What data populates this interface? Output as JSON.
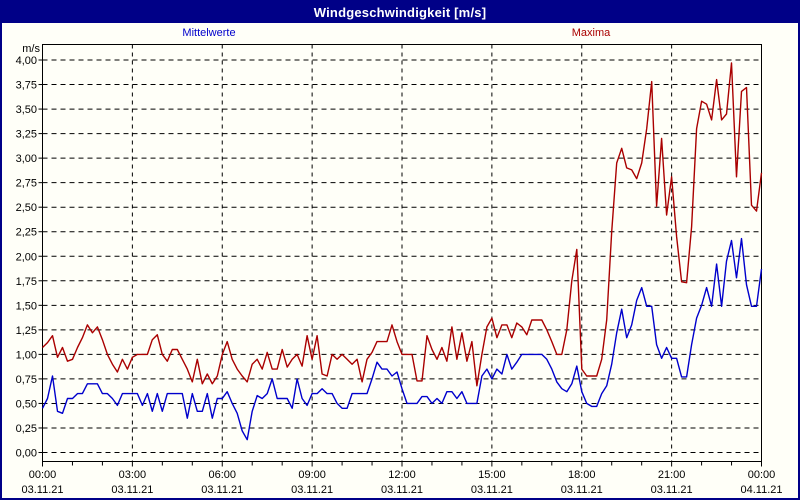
{
  "title_bar": {
    "title": "Windgeschwindigkeit [m/s]"
  },
  "legend": {
    "mean_label": "Mittelwerte",
    "max_label": "Maxima"
  },
  "colors": {
    "window_border": "#000087",
    "title_bg": "#000087",
    "title_text": "#FFFFFF",
    "background": "#FFFFF8",
    "grid": "#000000",
    "mean_series": "#0000CC",
    "max_series": "#AA0000"
  },
  "chart_data": {
    "type": "line",
    "title": "Windgeschwindigkeit [m/s]",
    "ylabel": "m/s",
    "unit_label": "m/s",
    "ylim": [
      0,
      4.25
    ],
    "ytick_step": 0.25,
    "ytick_labels": [
      "0,00",
      "0,25",
      "0,50",
      "0,75",
      "1,00",
      "1,25",
      "1,50",
      "1,75",
      "2,00",
      "2,25",
      "2,50",
      "2,75",
      "3,00",
      "3,25",
      "3,50",
      "3,75",
      "4,00"
    ],
    "x_range_hours": [
      0,
      24
    ],
    "xticks": [
      {
        "hour": 0,
        "time": "00:00",
        "date": "03.11.21"
      },
      {
        "hour": 3,
        "time": "03:00",
        "date": "03.11.21"
      },
      {
        "hour": 6,
        "time": "06:00",
        "date": "03.11.21"
      },
      {
        "hour": 9,
        "time": "09:00",
        "date": "03.11.21"
      },
      {
        "hour": 12,
        "time": "12:00",
        "date": "03.11.21"
      },
      {
        "hour": 15,
        "time": "15:00",
        "date": "03.11.21"
      },
      {
        "hour": 18,
        "time": "18:00",
        "date": "03.11.21"
      },
      {
        "hour": 21,
        "time": "21:00",
        "date": "03.11.21"
      },
      {
        "hour": 24,
        "time": "00:00",
        "date": "04.11.21"
      }
    ],
    "grid": "dashed",
    "legend_position": "top",
    "sample_interval_minutes": 10,
    "series": [
      {
        "name": "Maxima",
        "color": "#AA0000",
        "values": [
          1.07,
          1.12,
          1.19,
          0.97,
          1.07,
          0.93,
          0.95,
          1.07,
          1.17,
          1.3,
          1.22,
          1.28,
          1.15,
          1.0,
          0.9,
          0.82,
          0.95,
          0.85,
          0.97,
          1.0,
          1.0,
          1.0,
          1.15,
          1.2,
          1.0,
          0.93,
          1.05,
          1.05,
          0.95,
          0.85,
          0.72,
          0.95,
          0.7,
          0.8,
          0.7,
          0.78,
          1.0,
          1.13,
          0.95,
          0.85,
          0.78,
          0.72,
          0.9,
          0.95,
          0.85,
          1.02,
          0.85,
          0.85,
          1.05,
          0.87,
          0.95,
          1.0,
          0.88,
          1.19,
          0.95,
          1.19,
          0.8,
          0.78,
          1.0,
          0.95,
          1.0,
          0.95,
          0.9,
          0.95,
          0.72,
          0.95,
          1.02,
          1.13,
          1.13,
          1.13,
          1.3,
          1.13,
          1.0,
          1.0,
          1.0,
          0.73,
          0.73,
          1.19,
          1.05,
          0.95,
          1.07,
          0.93,
          1.28,
          0.95,
          1.22,
          0.93,
          1.13,
          0.68,
          1.0,
          1.28,
          1.37,
          1.17,
          1.3,
          1.3,
          1.17,
          1.32,
          1.28,
          1.2,
          1.35,
          1.35,
          1.35,
          1.25,
          1.13,
          1.0,
          1.0,
          1.25,
          1.75,
          2.07,
          0.85,
          0.78,
          0.78,
          0.78,
          0.95,
          1.35,
          2.25,
          2.95,
          3.1,
          2.9,
          2.88,
          2.79,
          2.95,
          3.3,
          3.78,
          2.51,
          3.2,
          2.42,
          2.81,
          2.2,
          1.74,
          1.73,
          2.3,
          3.3,
          3.58,
          3.55,
          3.39,
          3.8,
          3.39,
          3.45,
          3.97,
          2.81,
          3.68,
          3.72,
          2.52,
          2.46,
          2.85
        ]
      },
      {
        "name": "Mittelwerte",
        "color": "#0000CC",
        "values": [
          0.45,
          0.55,
          0.78,
          0.42,
          0.4,
          0.55,
          0.55,
          0.6,
          0.6,
          0.7,
          0.7,
          0.7,
          0.6,
          0.6,
          0.55,
          0.48,
          0.6,
          0.6,
          0.6,
          0.6,
          0.48,
          0.6,
          0.42,
          0.6,
          0.42,
          0.6,
          0.6,
          0.6,
          0.6,
          0.35,
          0.6,
          0.42,
          0.42,
          0.6,
          0.35,
          0.55,
          0.55,
          0.62,
          0.5,
          0.4,
          0.22,
          0.13,
          0.42,
          0.58,
          0.55,
          0.6,
          0.75,
          0.55,
          0.55,
          0.55,
          0.45,
          0.75,
          0.55,
          0.48,
          0.6,
          0.6,
          0.65,
          0.6,
          0.6,
          0.5,
          0.45,
          0.45,
          0.6,
          0.6,
          0.6,
          0.6,
          0.75,
          0.92,
          0.85,
          0.85,
          0.78,
          0.82,
          0.65,
          0.5,
          0.5,
          0.5,
          0.57,
          0.57,
          0.5,
          0.55,
          0.5,
          0.62,
          0.62,
          0.55,
          0.62,
          0.5,
          0.5,
          0.5,
          0.78,
          0.85,
          0.75,
          0.85,
          0.8,
          1.0,
          0.85,
          0.92,
          1.0,
          1.0,
          1.0,
          1.0,
          1.0,
          0.95,
          0.85,
          0.72,
          0.65,
          0.62,
          0.7,
          0.88,
          0.62,
          0.5,
          0.47,
          0.47,
          0.6,
          0.68,
          0.9,
          1.22,
          1.46,
          1.17,
          1.3,
          1.55,
          1.68,
          1.49,
          1.49,
          1.1,
          0.96,
          1.07,
          0.96,
          0.96,
          0.77,
          0.77,
          1.1,
          1.37,
          1.5,
          1.68,
          1.49,
          1.92,
          1.49,
          1.95,
          2.16,
          1.78,
          2.18,
          1.71,
          1.49,
          1.49,
          1.87
        ]
      }
    ]
  }
}
